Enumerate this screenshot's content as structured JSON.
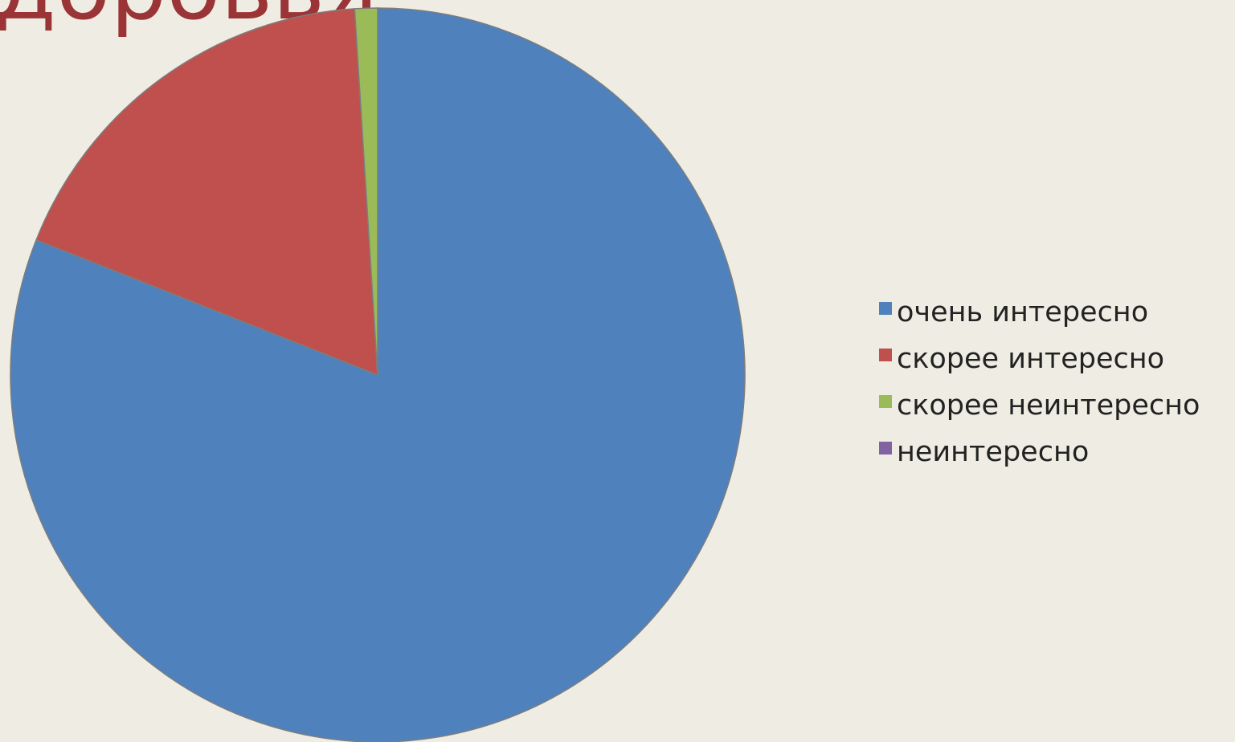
{
  "header": {
    "title_fragment": "доровья"
  },
  "chart_data": {
    "type": "pie",
    "start_angle_deg": 0,
    "direction": "clockwise",
    "slices": [
      {
        "label": "очень интересно",
        "value": 81,
        "color": "#4f81bd"
      },
      {
        "label": "скорее интересно",
        "value": 18,
        "color": "#c0504d"
      },
      {
        "label": "скорее неинтересно",
        "value": 1,
        "color": "#9bbb59"
      },
      {
        "label": "неинтересно",
        "value": 0,
        "color": "#8064a2"
      }
    ],
    "legend": {
      "position": "right",
      "items": [
        "очень интересно",
        "скорее интересно",
        "скорее неинтересно",
        "неинтересно"
      ]
    }
  }
}
